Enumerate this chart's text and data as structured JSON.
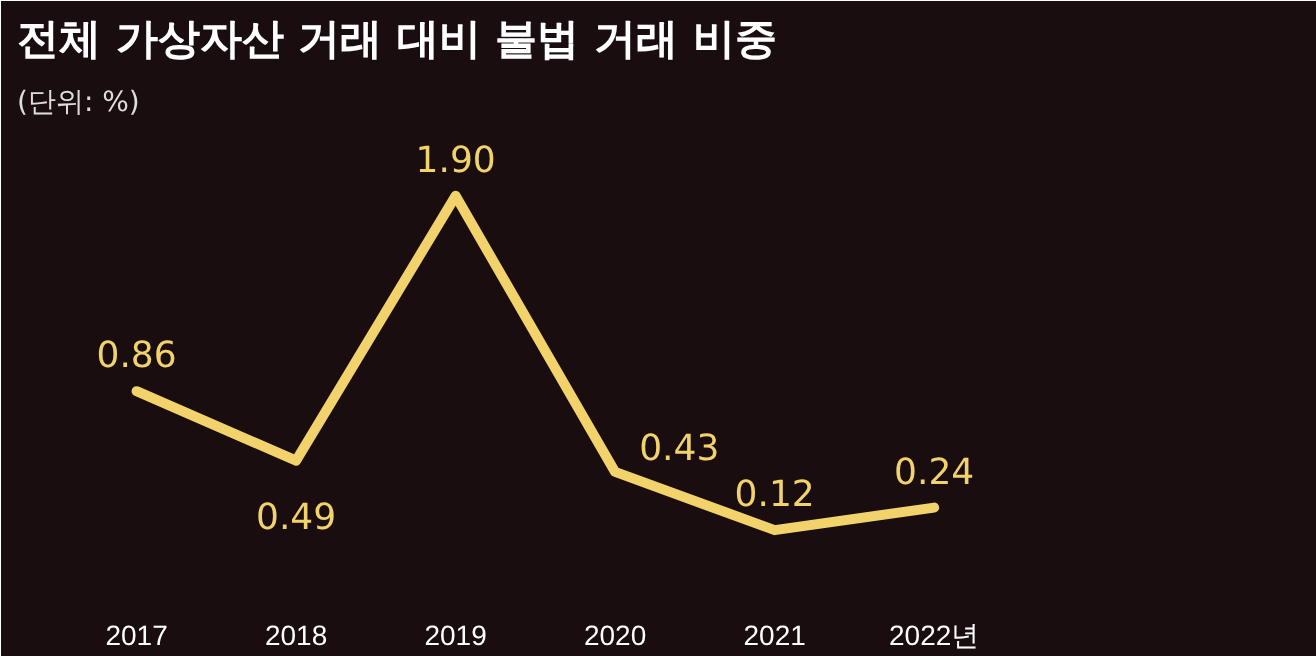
{
  "chart_data": {
    "type": "line",
    "title": "전체 가상자산 거래 대비 불법 거래 비중",
    "subtitle": "(단위: %)",
    "categories": [
      "2017",
      "2018",
      "2019",
      "2020",
      "2021",
      "2022년"
    ],
    "series": [
      {
        "color": "#f2d36b",
        "values": [
          0.86,
          0.49,
          1.9,
          0.43,
          0.12,
          0.24
        ],
        "value_labels": [
          "0.86",
          "0.49",
          "1.90",
          "0.43",
          "0.12",
          "0.24"
        ]
      }
    ],
    "marker": "none",
    "line_style": "solid",
    "grid": false
  }
}
